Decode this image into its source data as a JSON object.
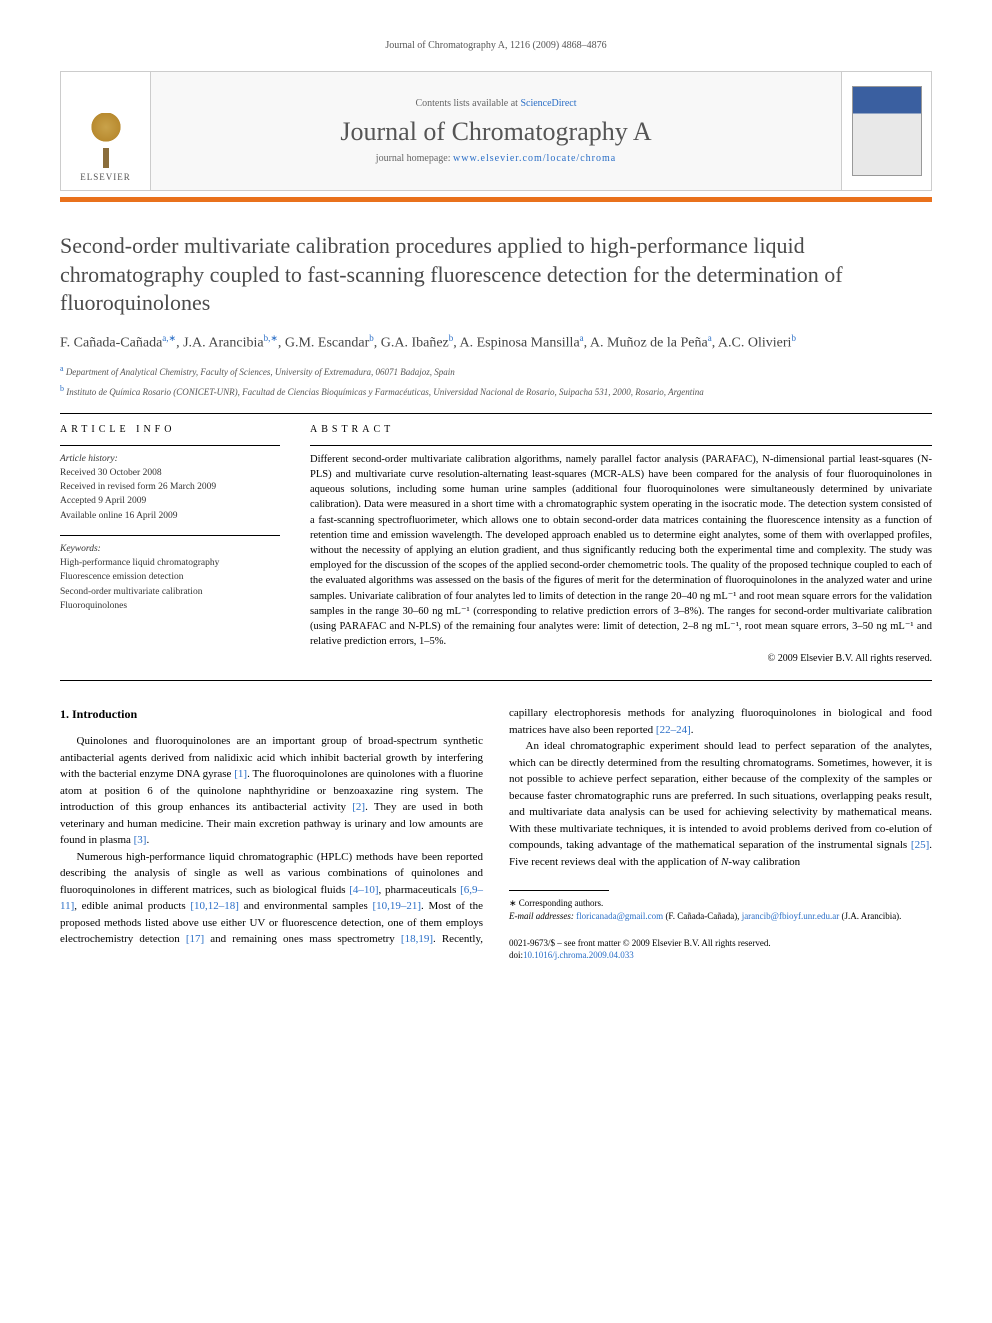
{
  "running_header": "Journal of Chromatography A, 1216 (2009) 4868–4876",
  "journal_box": {
    "contents_pre": "Contents lists available at ",
    "contents_link": "ScienceDirect",
    "journal_name": "Journal of Chromatography A",
    "homepage_pre": "journal homepage: ",
    "homepage_link": "www.elsevier.com/locate/chroma",
    "publisher": "ELSEVIER"
  },
  "title": "Second-order multivariate calibration procedures applied to high-performance liquid chromatography coupled to fast-scanning fluorescence detection for the determination of fluoroquinolones",
  "authors_html": "F. Cañada-Cañada<sup>a,∗</sup>, J.A. Arancibia<sup>b,∗</sup>, G.M. Escandar<sup>b</sup>, G.A. Ibañez<sup>b</sup>, A. Espinosa Mansilla<sup>a</sup>, A. Muñoz de la Peña<sup>a</sup>, A.C. Olivieri<sup>b</sup>",
  "affiliations": {
    "a": "Department of Analytical Chemistry, Faculty of Sciences, University of Extremadura, 06071 Badajoz, Spain",
    "b": "Instituto de Química Rosario (CONICET-UNR), Facultad de Ciencias Bioquímicas y Farmacéuticas, Universidad Nacional de Rosario, Suipacha 531, 2000, Rosario, Argentina"
  },
  "article_info": {
    "heading": "ARTICLE INFO",
    "history_label": "Article history:",
    "history": [
      "Received 30 October 2008",
      "Received in revised form 26 March 2009",
      "Accepted 9 April 2009",
      "Available online 16 April 2009"
    ],
    "keywords_label": "Keywords:",
    "keywords": [
      "High-performance liquid chromatography",
      "Fluorescence emission detection",
      "Second-order multivariate calibration",
      "Fluoroquinolones"
    ]
  },
  "abstract": {
    "heading": "ABSTRACT",
    "text": "Different second-order multivariate calibration algorithms, namely parallel factor analysis (PARAFAC), N-dimensional partial least-squares (N-PLS) and multivariate curve resolution-alternating least-squares (MCR-ALS) have been compared for the analysis of four fluoroquinolones in aqueous solutions, including some human urine samples (additional four fluoroquinolones were simultaneously determined by univariate calibration). Data were measured in a short time with a chromatographic system operating in the isocratic mode. The detection system consisted of a fast-scanning spectrofluorimeter, which allows one to obtain second-order data matrices containing the fluorescence intensity as a function of retention time and emission wavelength. The developed approach enabled us to determine eight analytes, some of them with overlapped profiles, without the necessity of applying an elution gradient, and thus significantly reducing both the experimental time and complexity. The study was employed for the discussion of the scopes of the applied second-order chemometric tools. The quality of the proposed technique coupled to each of the evaluated algorithms was assessed on the basis of the figures of merit for the determination of fluoroquinolones in the analyzed water and urine samples. Univariate calibration of four analytes led to limits of detection in the range 20–40 ng mL⁻¹ and root mean square errors for the validation samples in the range 30–60 ng mL⁻¹ (corresponding to relative prediction errors of 3–8%). The ranges for second-order multivariate calibration (using PARAFAC and N-PLS) of the remaining four analytes were: limit of detection, 2–8 ng mL⁻¹, root mean square errors, 3–50 ng mL⁻¹ and relative prediction errors, 1–5%.",
    "copyright": "© 2009 Elsevier B.V. All rights reserved."
  },
  "body": {
    "section_heading": "1. Introduction",
    "p1_pre": "Quinolones and fluoroquinolones are an important group of broad-spectrum synthetic antibacterial agents derived from nalidixic acid which inhibit bacterial growth by interfering with the bacterial enzyme DNA gyrase ",
    "r1": "[1]",
    "p1_mid": ". The fluoroquinolones are quinolones with a fluorine atom at position 6 of the quinolone naphthyridine or benzoaxazine ring system. The introduction of this group enhances its antibacterial activity ",
    "r2": "[2]",
    "p1_mid2": ". They are used in both veterinary and human medicine. Their main excretion pathway is urinary and low amounts are found in plasma ",
    "r3": "[3]",
    "p1_end": ".",
    "p2_pre": "Numerous high-performance liquid chromatographic (HPLC) methods have been reported describing the analysis of single as well as various combinations of quinolones and fluoroquinolones in different matrices, such as biological fluids ",
    "r4": "[4–10]",
    "p2_a": ", pharmaceuticals ",
    "r5": "[6,9–11]",
    "p2_b": ", edible animal products ",
    "r6": "[10,12–18]",
    "p2_c": " and environmental samples ",
    "r7": "[10,19–21]",
    "p2_d": ". Most of the proposed methods listed above use either UV or fluorescence detection, one of them employs electrochemistry detection ",
    "r8": "[17]",
    "p2_e": " and remaining ones mass spectrometry ",
    "r9": "[18,19]",
    "p2_f": ". Recently, capillary electrophoresis methods for analyzing fluoroquinolones in biological and food matrices have also been reported ",
    "r10": "[22–24]",
    "p2_end": ".",
    "p3_pre": "An ideal chromatographic experiment should lead to perfect separation of the analytes, which can be directly determined from the resulting chromatograms. Sometimes, however, it is not possible to achieve perfect separation, either because of the complexity of the samples or because faster chromatographic runs are preferred. In such situations, overlapping peaks result, and multivariate data analysis can be used for achieving selectivity by mathematical means. With these multivariate techniques, it is intended to avoid problems derived from co-elution of compounds, taking advantage of the mathematical separation of the instrumental signals ",
    "r11": "[25]",
    "p3_mid": ". Five recent reviews deal with the application of ",
    "nway": "N",
    "p3_end": "-way calibration"
  },
  "footnotes": {
    "corr_label": "∗ Corresponding authors.",
    "email_label": "E-mail addresses:",
    "email1": "floricanada@gmail.com",
    "email1_who": " (F. Cañada-Cañada), ",
    "email2": "jarancib@fbioyf.unr.edu.ar",
    "email2_who": " (J.A. Arancibia)."
  },
  "footer": {
    "line1": "0021-9673/$ – see front matter © 2009 Elsevier B.V. All rights reserved.",
    "doi_pre": "doi:",
    "doi": "10.1016/j.chroma.2009.04.033"
  },
  "colors": {
    "accent_orange": "#e9711c",
    "link_blue": "#2a6ec6",
    "heading_gray": "#4a4a4a"
  }
}
